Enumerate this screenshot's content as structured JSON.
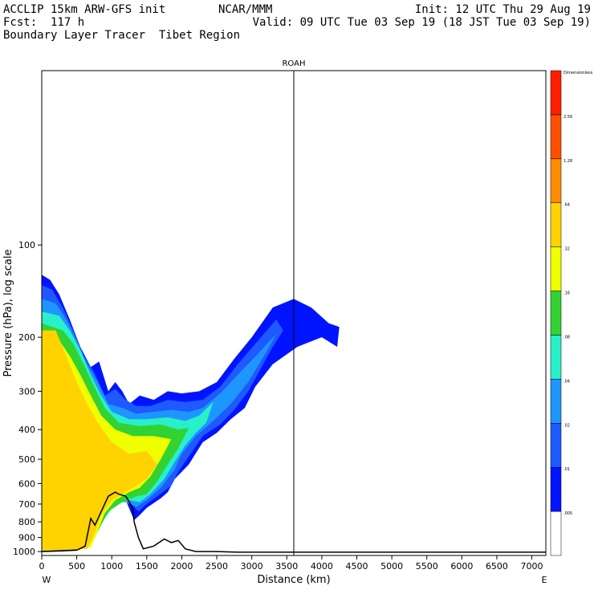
{
  "header": {
    "left_line1": "ACCLIP 15km ARW-GFS init",
    "left_line2": "Fcst:  117 h",
    "left_line3": "Boundary Layer Tracer  Tibet Region",
    "center_line1": "NCAR/MMM",
    "right_line1": "Init: 12 UTC Thu 29 Aug 19",
    "right_line2": "Valid: 09 UTC Tue 03 Sep 19 (18 JST Tue 03 Sep 19)"
  },
  "chart_data": {
    "type": "heatmap",
    "title": "",
    "marker_label": "ROAH",
    "marker_x": 3600,
    "xlabel": "Distance (km)",
    "ylabel": "Pressure (hPa), log scale",
    "xlim": [
      0,
      7200
    ],
    "ylim": [
      1030,
      27
    ],
    "y_scale": "log",
    "x_ticks": [
      0,
      500,
      1000,
      1500,
      2000,
      2500,
      3000,
      3500,
      4000,
      4500,
      5000,
      5500,
      6000,
      6500,
      7000
    ],
    "y_ticks": [
      100,
      200,
      300,
      400,
      500,
      600,
      700,
      800,
      900,
      1000
    ],
    "x_end_labels": [
      "W",
      "E"
    ],
    "colorbar": {
      "levels": [
        ".005",
        ".01",
        ".02",
        ".04",
        ".08",
        ".16",
        ".32",
        ".64",
        "1.28",
        "2.56",
        "Dimensionless"
      ],
      "colors": [
        "#ffffff",
        "#0014ff",
        "#1e5aff",
        "#1e96ff",
        "#28f0c8",
        "#32d232",
        "#f0ff00",
        "#ffd200",
        "#ff8c00",
        "#ff5000",
        "#ff1e00"
      ]
    },
    "terrain": [
      [
        0,
        1000
      ],
      [
        300,
        995
      ],
      [
        500,
        990
      ],
      [
        620,
        960
      ],
      [
        700,
        780
      ],
      [
        760,
        820
      ],
      [
        850,
        740
      ],
      [
        950,
        660
      ],
      [
        1050,
        640
      ],
      [
        1100,
        650
      ],
      [
        1200,
        660
      ],
      [
        1300,
        720
      ],
      [
        1320,
        800
      ],
      [
        1380,
        900
      ],
      [
        1450,
        980
      ],
      [
        1600,
        960
      ],
      [
        1750,
        910
      ],
      [
        1850,
        935
      ],
      [
        1950,
        920
      ],
      [
        2050,
        980
      ],
      [
        2200,
        1000
      ],
      [
        2500,
        1000
      ],
      [
        2800,
        1005
      ],
      [
        3500,
        1005
      ],
      [
        7200,
        1005
      ]
    ],
    "contours": [
      {
        "level": ".01",
        "points": [
          [
            0,
            125
          ],
          [
            120,
            130
          ],
          [
            250,
            145
          ],
          [
            400,
            175
          ],
          [
            550,
            215
          ],
          [
            700,
            250
          ],
          [
            820,
            240
          ],
          [
            950,
            300
          ],
          [
            1050,
            280
          ],
          [
            1150,
            300
          ],
          [
            1250,
            330
          ],
          [
            1400,
            310
          ],
          [
            1600,
            320
          ],
          [
            1800,
            300
          ],
          [
            2000,
            305
          ],
          [
            2250,
            300
          ],
          [
            2500,
            280
          ],
          [
            2750,
            235
          ],
          [
            3000,
            200
          ],
          [
            3300,
            160
          ],
          [
            3600,
            150
          ],
          [
            3850,
            160
          ],
          [
            4100,
            180
          ],
          [
            4250,
            185
          ],
          [
            4220,
            215
          ],
          [
            4000,
            200
          ],
          [
            3650,
            215
          ],
          [
            3300,
            245
          ],
          [
            3050,
            290
          ],
          [
            2900,
            340
          ],
          [
            2700,
            370
          ],
          [
            2500,
            410
          ],
          [
            2300,
            440
          ],
          [
            2100,
            520
          ],
          [
            1900,
            580
          ],
          [
            1800,
            640
          ],
          [
            1700,
            670
          ],
          [
            1500,
            720
          ],
          [
            1400,
            760
          ],
          [
            1320,
            790
          ],
          [
            1200,
            680
          ],
          [
            1100,
            650
          ],
          [
            1000,
            640
          ],
          [
            900,
            700
          ],
          [
            800,
            780
          ],
          [
            700,
            790
          ],
          [
            620,
            970
          ],
          [
            500,
            990
          ],
          [
            300,
            995
          ],
          [
            0,
            1000
          ]
        ]
      },
      {
        "level": ".02",
        "points": [
          [
            0,
            135
          ],
          [
            150,
            140
          ],
          [
            300,
            160
          ],
          [
            450,
            190
          ],
          [
            600,
            230
          ],
          [
            750,
            260
          ],
          [
            900,
            310
          ],
          [
            1050,
            295
          ],
          [
            1200,
            320
          ],
          [
            1350,
            335
          ],
          [
            1550,
            335
          ],
          [
            1800,
            320
          ],
          [
            2050,
            325
          ],
          [
            2300,
            320
          ],
          [
            2550,
            290
          ],
          [
            2800,
            245
          ],
          [
            3050,
            210
          ],
          [
            3350,
            175
          ],
          [
            3450,
            190
          ],
          [
            3300,
            215
          ],
          [
            3100,
            260
          ],
          [
            2950,
            300
          ],
          [
            2750,
            345
          ],
          [
            2550,
            385
          ],
          [
            2300,
            420
          ],
          [
            2100,
            490
          ],
          [
            1950,
            550
          ],
          [
            1850,
            610
          ],
          [
            1650,
            660
          ],
          [
            1500,
            700
          ],
          [
            1380,
            740
          ],
          [
            1250,
            690
          ],
          [
            1100,
            660
          ],
          [
            900,
            720
          ],
          [
            750,
            800
          ],
          [
            650,
            960
          ],
          [
            0,
            995
          ]
        ]
      },
      {
        "level": ".04",
        "points": [
          [
            0,
            150
          ],
          [
            200,
            155
          ],
          [
            350,
            175
          ],
          [
            500,
            205
          ],
          [
            650,
            245
          ],
          [
            800,
            280
          ],
          [
            950,
            330
          ],
          [
            1150,
            340
          ],
          [
            1350,
            355
          ],
          [
            1600,
            350
          ],
          [
            1850,
            345
          ],
          [
            2100,
            350
          ],
          [
            2300,
            340
          ],
          [
            2550,
            305
          ],
          [
            2800,
            265
          ],
          [
            3100,
            225
          ],
          [
            3350,
            195
          ],
          [
            3200,
            225
          ],
          [
            2950,
            280
          ],
          [
            2700,
            330
          ],
          [
            2450,
            375
          ],
          [
            2200,
            420
          ],
          [
            2000,
            480
          ],
          [
            1900,
            540
          ],
          [
            1700,
            620
          ],
          [
            1500,
            680
          ],
          [
            1350,
            715
          ],
          [
            1200,
            690
          ],
          [
            1000,
            690
          ],
          [
            850,
            760
          ],
          [
            700,
            850
          ],
          [
            650,
            970
          ],
          [
            0,
            995
          ]
        ]
      },
      {
        "level": ".08",
        "points": [
          [
            0,
            165
          ],
          [
            250,
            170
          ],
          [
            400,
            190
          ],
          [
            550,
            220
          ],
          [
            700,
            265
          ],
          [
            850,
            310
          ],
          [
            1000,
            350
          ],
          [
            1250,
            370
          ],
          [
            1500,
            370
          ],
          [
            1800,
            365
          ],
          [
            2050,
            375
          ],
          [
            2250,
            360
          ],
          [
            2450,
            325
          ],
          [
            2350,
            380
          ],
          [
            2200,
            410
          ],
          [
            2050,
            450
          ],
          [
            1900,
            510
          ],
          [
            1750,
            580
          ],
          [
            1550,
            650
          ],
          [
            1400,
            690
          ],
          [
            1250,
            680
          ],
          [
            1050,
            700
          ],
          [
            900,
            780
          ],
          [
            750,
            900
          ],
          [
            650,
            980
          ],
          [
            0,
            995
          ]
        ]
      },
      {
        "level": ".16",
        "points": [
          [
            0,
            180
          ],
          [
            300,
            190
          ],
          [
            450,
            210
          ],
          [
            600,
            245
          ],
          [
            750,
            290
          ],
          [
            900,
            340
          ],
          [
            1100,
            380
          ],
          [
            1400,
            390
          ],
          [
            1700,
            385
          ],
          [
            1950,
            400
          ],
          [
            2100,
            395
          ],
          [
            1950,
            460
          ],
          [
            1800,
            520
          ],
          [
            1650,
            590
          ],
          [
            1500,
            650
          ],
          [
            1350,
            660
          ],
          [
            1150,
            690
          ],
          [
            950,
            740
          ],
          [
            800,
            860
          ],
          [
            700,
            960
          ],
          [
            0,
            995
          ]
        ]
      },
      {
        "level": ".32",
        "points": [
          [
            0,
            200
          ],
          [
            250,
            205
          ],
          [
            400,
            230
          ],
          [
            550,
            265
          ],
          [
            700,
            310
          ],
          [
            850,
            360
          ],
          [
            1050,
            400
          ],
          [
            1300,
            420
          ],
          [
            1600,
            420
          ],
          [
            1850,
            430
          ],
          [
            1700,
            500
          ],
          [
            1550,
            570
          ],
          [
            1400,
            620
          ],
          [
            1250,
            640
          ],
          [
            1050,
            680
          ],
          [
            900,
            750
          ],
          [
            780,
            880
          ],
          [
            700,
            970
          ],
          [
            0,
            995
          ]
        ]
      },
      {
        "level": ".64",
        "points": [
          [
            0,
            190
          ],
          [
            200,
            190
          ],
          [
            350,
            230
          ],
          [
            500,
            280
          ],
          [
            650,
            330
          ],
          [
            800,
            380
          ],
          [
            1000,
            440
          ],
          [
            1250,
            480
          ],
          [
            1500,
            470
          ],
          [
            1650,
            520
          ],
          [
            1500,
            580
          ],
          [
            1350,
            610
          ],
          [
            1150,
            650
          ],
          [
            1000,
            680
          ],
          [
            850,
            760
          ],
          [
            750,
            880
          ],
          [
            650,
            980
          ],
          [
            0,
            995
          ]
        ]
      }
    ]
  }
}
